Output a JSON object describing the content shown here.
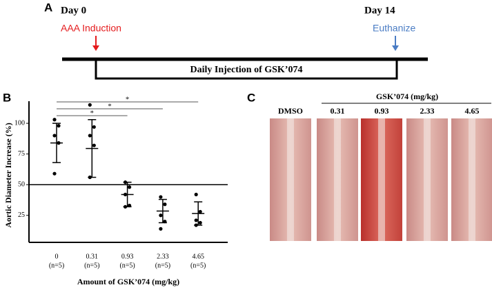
{
  "panel_a": {
    "letter": "A",
    "start_day": "Day 0",
    "end_day": "Day 14",
    "start_event": "AAA Induction",
    "end_event": "Euthanize",
    "bar_label": "Daily Injection of GSK’074"
  },
  "chart_data": {
    "type": "scatter",
    "letter": "B",
    "y_label": "Aortic Diameter Increase (%)",
    "x_label": "Amount of GSK’074 (mg/kg)",
    "categories": [
      "0",
      "0.31",
      "0.93",
      "2.33",
      "4.65"
    ],
    "n_labels": [
      "(n=5)",
      "(n=5)",
      "(n=5)",
      "(n=5)",
      "(n=5)"
    ],
    "points": [
      [
        103,
        98,
        90,
        84,
        59
      ],
      [
        115,
        97,
        90,
        82,
        56
      ],
      [
        52,
        48,
        42,
        33,
        32
      ],
      [
        40,
        34,
        25,
        20,
        14
      ],
      [
        42,
        28,
        21,
        19,
        17
      ]
    ],
    "means": [
      84,
      79.5,
      42,
      28.5,
      26.5
    ],
    "sds": [
      16,
      23.5,
      10,
      9.5,
      9.5
    ],
    "reference_line": 50,
    "significance": [
      "*",
      "*",
      "*"
    ],
    "ylim": [
      3,
      118
    ],
    "yticks": [
      25,
      50,
      75,
      100
    ],
    "color": "#000000"
  },
  "panel_c": {
    "letter": "C",
    "group_label": "GSK’074 (mg/kg)",
    "labels": [
      "DMSO",
      "0.31",
      "0.93",
      "2.33",
      "4.65"
    ]
  }
}
